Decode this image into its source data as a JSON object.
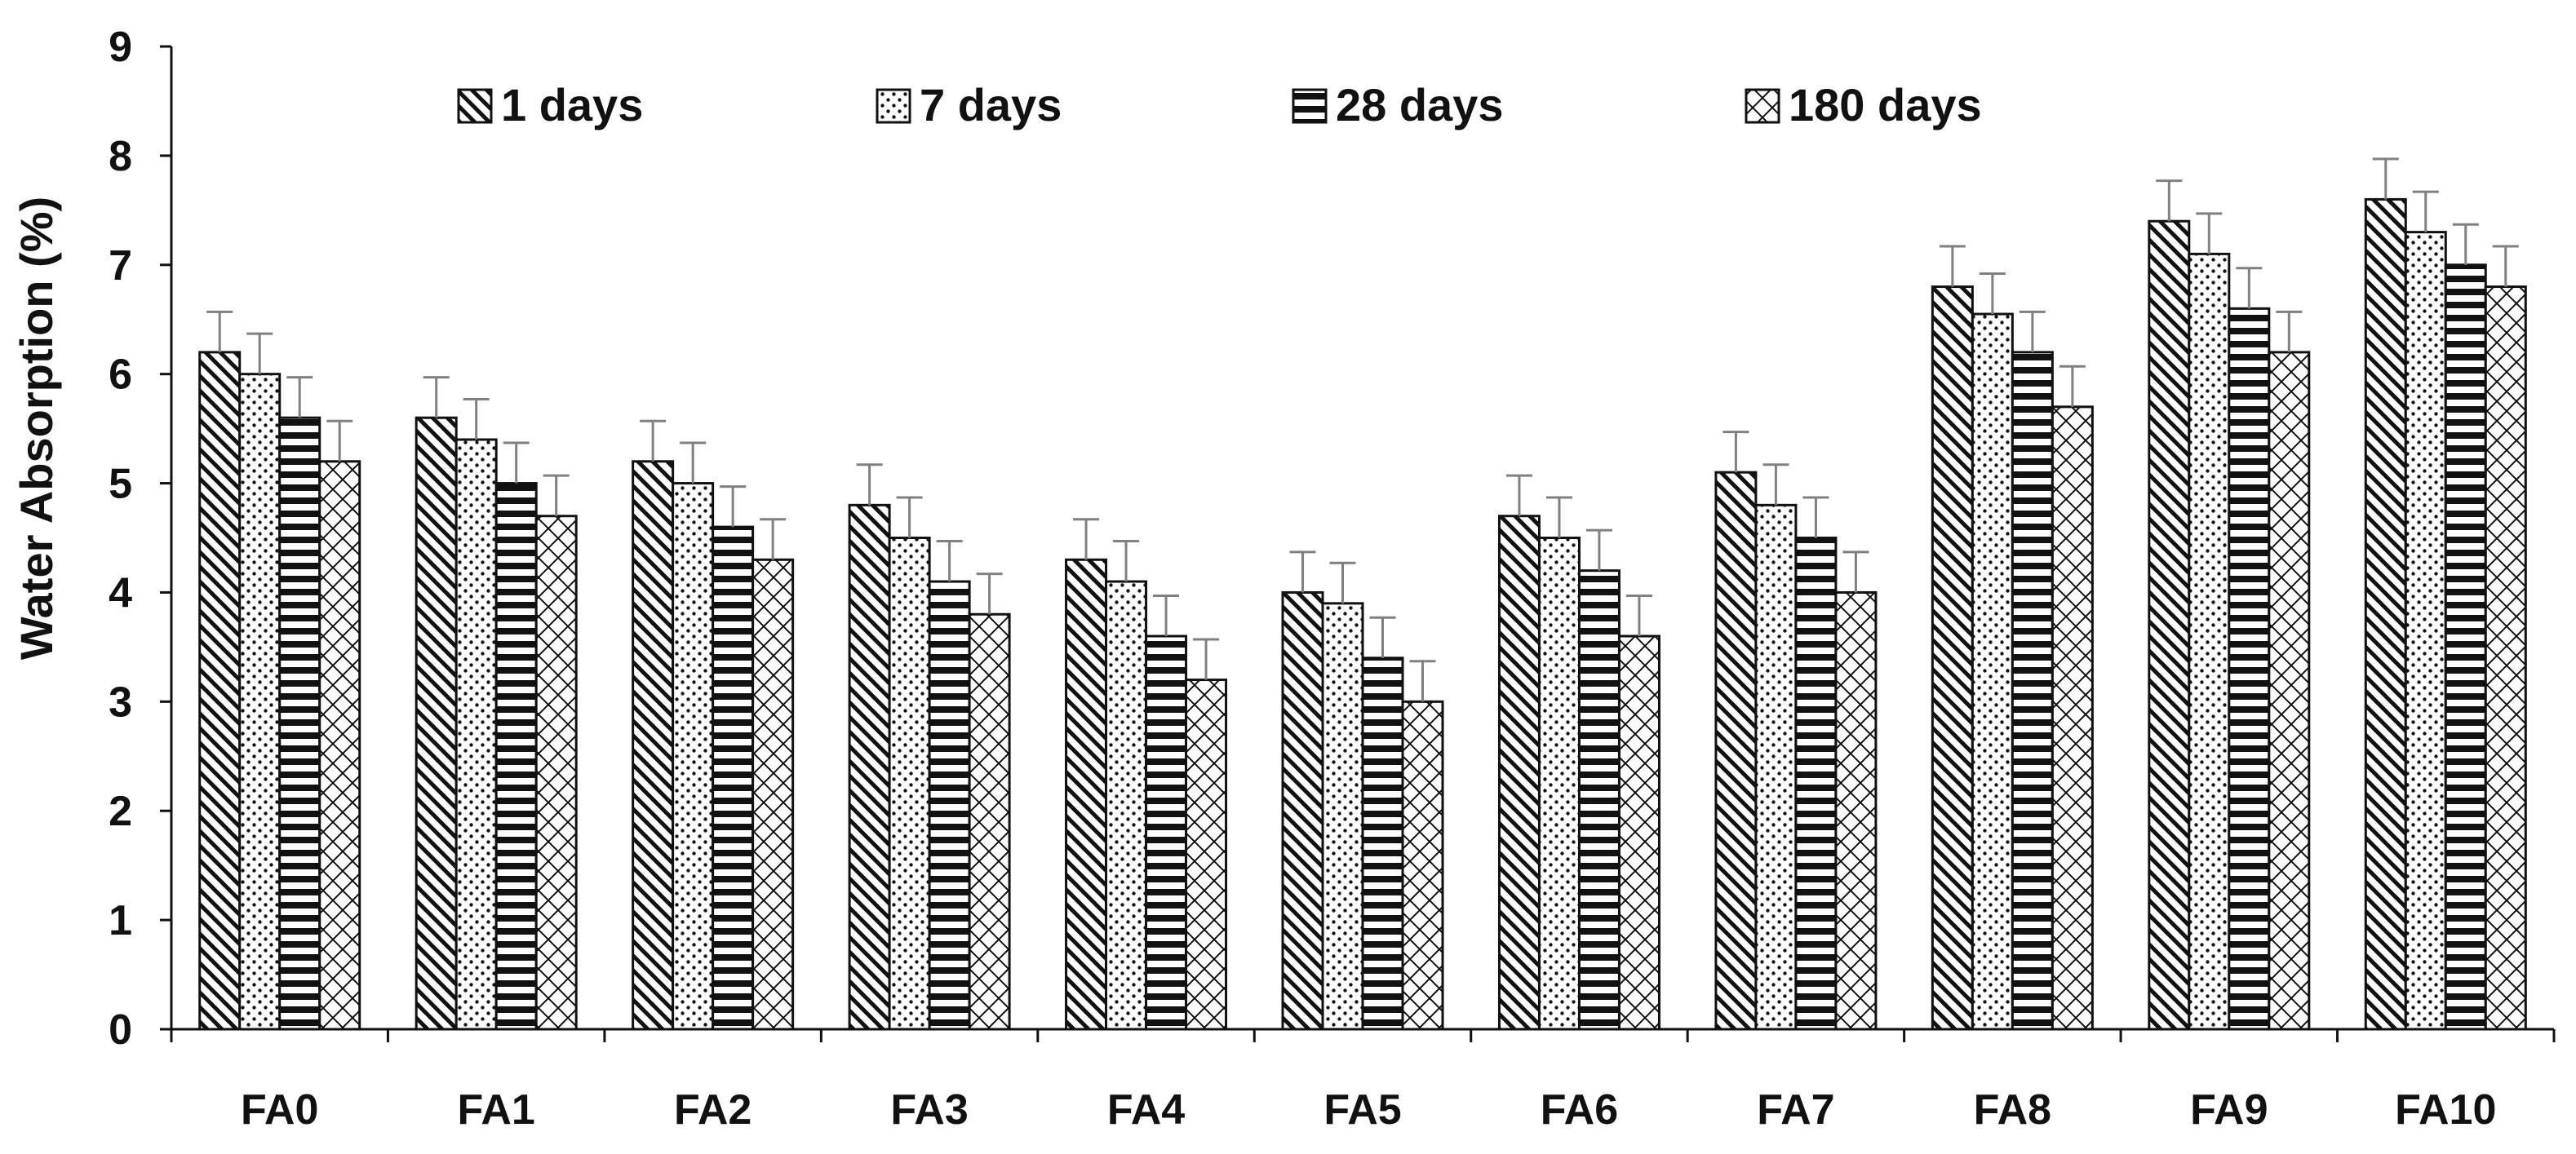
{
  "chart_data": {
    "type": "bar",
    "title": "",
    "xlabel": "",
    "ylabel": "Water Absorption (%)",
    "ylim": [
      0,
      9
    ],
    "yticks": [
      0,
      1,
      2,
      3,
      4,
      5,
      6,
      7,
      8,
      9
    ],
    "grid": false,
    "legend_position": "top",
    "categories": [
      "FA0",
      "FA1",
      "FA2",
      "FA3",
      "FA4",
      "FA5",
      "FA6",
      "FA7",
      "FA8",
      "FA9",
      "FA10"
    ],
    "series": [
      {
        "name": "1 days",
        "pattern": "diagonal",
        "values": [
          6.2,
          5.6,
          5.2,
          4.8,
          4.3,
          4.0,
          4.7,
          5.1,
          6.8,
          7.4,
          7.6
        ],
        "error": 0.37
      },
      {
        "name": "7 days",
        "pattern": "dots",
        "values": [
          6.0,
          5.4,
          5.0,
          4.5,
          4.1,
          3.9,
          4.5,
          4.8,
          6.55,
          7.1,
          7.3
        ],
        "error": 0.37
      },
      {
        "name": "28 days",
        "pattern": "hlines",
        "values": [
          5.6,
          5.0,
          4.6,
          4.1,
          3.6,
          3.4,
          4.2,
          4.5,
          6.2,
          6.6,
          7.0
        ],
        "error": 0.37
      },
      {
        "name": "180 days",
        "pattern": "crosshatch",
        "values": [
          5.2,
          4.7,
          4.3,
          3.8,
          3.2,
          3.0,
          3.6,
          4.0,
          5.7,
          6.2,
          6.8
        ],
        "error": 0.37
      }
    ],
    "colors": {
      "ink": "#111111",
      "error_bar": "#808080",
      "background": "#ffffff"
    }
  }
}
